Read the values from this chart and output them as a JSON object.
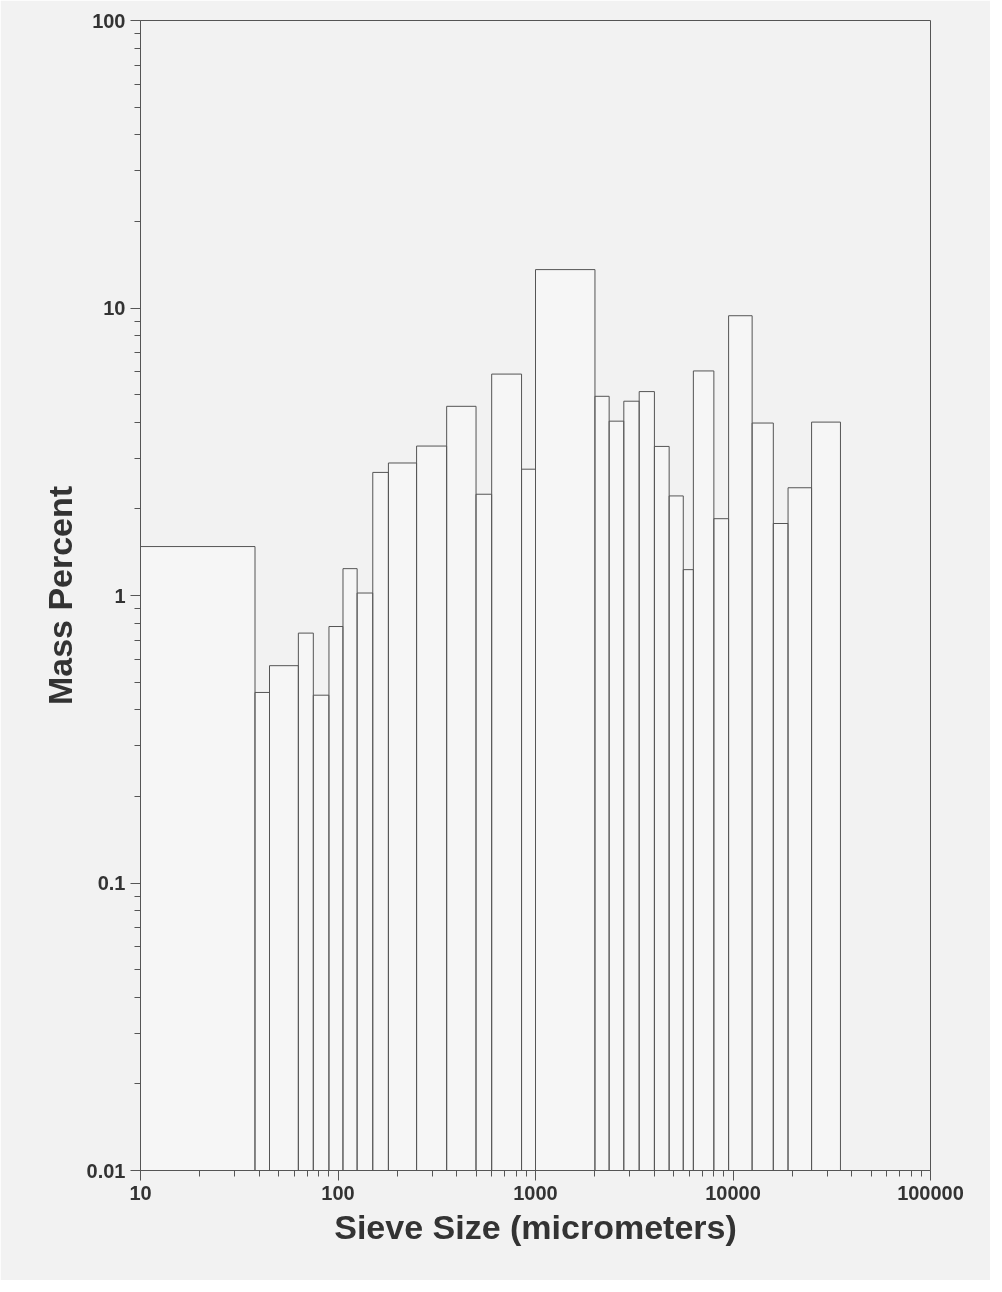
{
  "chart_data": {
    "type": "histogram",
    "xlabel": "Sieve Size (micrometers)",
    "ylabel": "Mass Percent",
    "bins": [
      10,
      38,
      45,
      63,
      75,
      90,
      106,
      125,
      150,
      180,
      250,
      355,
      500,
      600,
      850,
      1000,
      2000,
      2360,
      2800,
      3350,
      4000,
      4750,
      5600,
      6300,
      8000,
      9500,
      12500,
      16000,
      19000,
      25000,
      35000
    ],
    "values": [
      1.48,
      0.46,
      0.57,
      0.74,
      0.45,
      0.78,
      1.24,
      1.02,
      2.68,
      2.89,
      3.31,
      4.55,
      2.25,
      5.89,
      2.75,
      13.6,
      4.93,
      4.04,
      4.74,
      5.12,
      3.3,
      2.22,
      1.23,
      6.04,
      1.85,
      9.4,
      3.98,
      1.78,
      2.37,
      4.01
    ],
    "color": "#ffffff",
    "log": "xy",
    "xlim": [
      10,
      100000
    ],
    "ylim": [
      0.01,
      100
    ],
    "xticks": [
      10,
      100,
      1000,
      10000,
      100000
    ],
    "yticks": [
      0.01,
      0.1,
      1,
      10,
      100
    ],
    "grid": false
  }
}
